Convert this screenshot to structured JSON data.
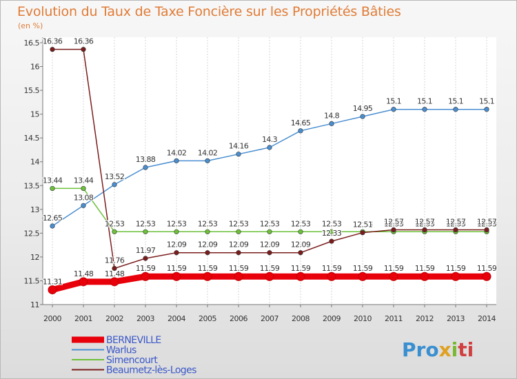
{
  "title": "Evolution du Taux de Taxe Foncière sur les Propriétés Bâties",
  "subtitle": "(en %)",
  "logo": {
    "text": "Proxiti",
    "parts": [
      "Pro",
      "x",
      "i",
      "ti"
    ]
  },
  "chart_data": {
    "type": "line",
    "x": [
      2000,
      2001,
      2002,
      2003,
      2004,
      2005,
      2006,
      2007,
      2008,
      2009,
      2010,
      2011,
      2012,
      2013,
      2014
    ],
    "ylim": [
      11,
      16.5
    ],
    "yticks": [
      "11",
      "11.5",
      "12",
      "12.5",
      "13",
      "13.5",
      "14",
      "14.5",
      "15",
      "15.5",
      "16",
      "16.5"
    ],
    "grid": "vertical",
    "legend_position": "bottom-left",
    "series": [
      {
        "name": "BERNEVILLE",
        "color": "#e8000b",
        "label_color": "#ffffff",
        "values": [
          11.31,
          11.48,
          11.48,
          11.59,
          11.59,
          11.59,
          11.59,
          11.59,
          11.59,
          11.59,
          11.59,
          11.59,
          11.59,
          11.59,
          11.59
        ],
        "labels": [
          "11.31",
          "11.48",
          "11.48",
          "11.59",
          "11.59",
          "11.59",
          "11.59",
          "11.59",
          "11.59",
          "11.59",
          "11.59",
          "11.59",
          "11.59",
          "11.59",
          "11.59"
        ]
      },
      {
        "name": "Warlus",
        "color": "#4a8ed0",
        "values": [
          12.65,
          13.08,
          13.52,
          13.88,
          14.02,
          14.02,
          14.16,
          14.3,
          14.65,
          14.8,
          14.95,
          15.1,
          15.1,
          15.1,
          15.1
        ],
        "labels": [
          "12.65",
          "13.08",
          "13.52",
          "13.88",
          "14.02",
          "14.02",
          "14.16",
          "14.3",
          "14.65",
          "14.8",
          "14.95",
          "15.1",
          "15.1",
          "15.1",
          "15.1"
        ]
      },
      {
        "name": "Simencourt",
        "color": "#6cc03a",
        "values": [
          13.44,
          13.44,
          12.53,
          12.53,
          12.53,
          12.53,
          12.53,
          12.53,
          12.53,
          12.53,
          12.53,
          12.53,
          12.53,
          12.53,
          12.53
        ],
        "labels": [
          "13.44",
          "13.44",
          "12.53",
          "12.53",
          "12.53",
          "12.53",
          "12.53",
          "12.53",
          "12.53",
          "12.53",
          "12.53",
          "12.53",
          "12.53",
          "12.53",
          "12.53"
        ]
      },
      {
        "name": "Beaumetz-lès-Loges",
        "color": "#7a1c1c",
        "values": [
          16.36,
          16.36,
          11.76,
          11.97,
          12.09,
          12.09,
          12.09,
          12.09,
          12.09,
          12.33,
          12.51,
          12.57,
          12.57,
          12.57,
          12.57
        ],
        "labels": [
          "16.36",
          "16.36",
          "11.76",
          "11.97",
          "12.09",
          "12.09",
          "12.09",
          "12.09",
          "12.09",
          "12.33",
          "12.51",
          "12.57",
          "12.57",
          "12.57",
          "12.57"
        ]
      }
    ]
  }
}
